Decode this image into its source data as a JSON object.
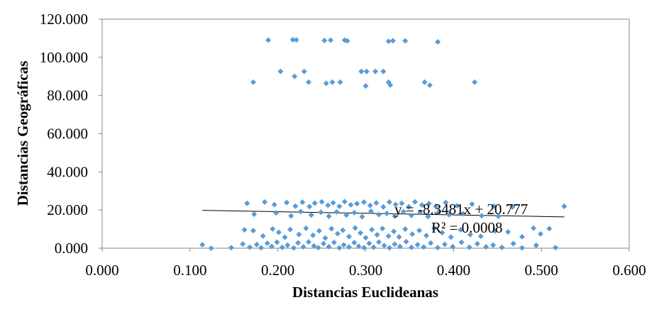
{
  "chart_data": {
    "type": "scatter",
    "title": "",
    "xlabel": "Distancias Euclideanas",
    "ylabel": "Distancias Geográficas",
    "xlim": [
      0,
      0.6
    ],
    "ylim": [
      0,
      120
    ],
    "x_ticks": [
      "0.000",
      "0.100",
      "0.200",
      "0.300",
      "0.400",
      "0.500",
      "0.600"
    ],
    "y_ticks": [
      "0.000",
      "20.000",
      "40.000",
      "60.000",
      "80.000",
      "100.000",
      "120.000"
    ],
    "grid": false,
    "legend": "none",
    "marker_color": "#5B9BD5",
    "series": [
      {
        "points": [
          [
            0.189,
            109.0
          ],
          [
            0.217,
            109.2
          ],
          [
            0.221,
            109.1
          ],
          [
            0.253,
            108.8
          ],
          [
            0.26,
            109.0
          ],
          [
            0.276,
            109.0
          ],
          [
            0.279,
            108.6
          ],
          [
            0.326,
            108.4
          ],
          [
            0.331,
            108.7
          ],
          [
            0.345,
            108.6
          ],
          [
            0.382,
            108.1
          ],
          [
            0.203,
            92.6
          ],
          [
            0.219,
            90.0
          ],
          [
            0.23,
            92.6
          ],
          [
            0.295,
            92.6
          ],
          [
            0.301,
            92.6
          ],
          [
            0.311,
            92.6
          ],
          [
            0.32,
            92.6
          ],
          [
            0.367,
            87.0
          ],
          [
            0.172,
            87.0
          ],
          [
            0.235,
            87.0
          ],
          [
            0.255,
            86.4
          ],
          [
            0.262,
            87.0
          ],
          [
            0.271,
            87.0
          ],
          [
            0.3,
            85.0
          ],
          [
            0.326,
            87.0
          ],
          [
            0.328,
            85.5
          ],
          [
            0.373,
            85.4
          ],
          [
            0.424,
            87.0
          ],
          [
            0.165,
            23.5
          ],
          [
            0.185,
            24.2
          ],
          [
            0.196,
            22.8
          ],
          [
            0.21,
            23.9
          ],
          [
            0.22,
            22.0
          ],
          [
            0.228,
            24.1
          ],
          [
            0.236,
            21.8
          ],
          [
            0.242,
            23.6
          ],
          [
            0.25,
            24.3
          ],
          [
            0.257,
            22.5
          ],
          [
            0.263,
            23.8
          ],
          [
            0.27,
            21.9
          ],
          [
            0.276,
            24.4
          ],
          [
            0.283,
            22.7
          ],
          [
            0.29,
            23.3
          ],
          [
            0.298,
            24.1
          ],
          [
            0.305,
            22.4
          ],
          [
            0.312,
            23.7
          ],
          [
            0.32,
            21.6
          ],
          [
            0.327,
            24.2
          ],
          [
            0.334,
            22.9
          ],
          [
            0.341,
            23.5
          ],
          [
            0.349,
            21.7
          ],
          [
            0.356,
            24.3
          ],
          [
            0.364,
            22.6
          ],
          [
            0.372,
            23.4
          ],
          [
            0.38,
            21.8
          ],
          [
            0.391,
            23.9
          ],
          [
            0.404,
            22.2
          ],
          [
            0.421,
            23.1
          ],
          [
            0.446,
            22.0
          ],
          [
            0.467,
            21.6
          ],
          [
            0.526,
            21.9
          ],
          [
            0.173,
            17.8
          ],
          [
            0.198,
            18.5
          ],
          [
            0.215,
            16.9
          ],
          [
            0.226,
            19.2
          ],
          [
            0.238,
            17.4
          ],
          [
            0.249,
            18.8
          ],
          [
            0.258,
            16.7
          ],
          [
            0.267,
            19.0
          ],
          [
            0.278,
            17.3
          ],
          [
            0.287,
            18.6
          ],
          [
            0.296,
            16.5
          ],
          [
            0.306,
            19.3
          ],
          [
            0.315,
            17.6
          ],
          [
            0.324,
            18.2
          ],
          [
            0.333,
            16.8
          ],
          [
            0.343,
            19.1
          ],
          [
            0.352,
            17.2
          ],
          [
            0.362,
            18.7
          ],
          [
            0.371,
            16.6
          ],
          [
            0.383,
            18.9
          ],
          [
            0.395,
            17.5
          ],
          [
            0.411,
            18.1
          ],
          [
            0.432,
            17.0
          ],
          [
            0.451,
            16.7
          ],
          [
            0.162,
            9.6
          ],
          [
            0.172,
            9.2
          ],
          [
            0.183,
            6.4
          ],
          [
            0.194,
            10.1
          ],
          [
            0.201,
            8.3
          ],
          [
            0.208,
            5.7
          ],
          [
            0.214,
            9.8
          ],
          [
            0.224,
            7.2
          ],
          [
            0.232,
            10.4
          ],
          [
            0.24,
            6.8
          ],
          [
            0.247,
            9.1
          ],
          [
            0.254,
            5.3
          ],
          [
            0.261,
            10.2
          ],
          [
            0.268,
            7.6
          ],
          [
            0.274,
            9.4
          ],
          [
            0.281,
            6.1
          ],
          [
            0.288,
            10.6
          ],
          [
            0.294,
            8.0
          ],
          [
            0.3,
            5.5
          ],
          [
            0.307,
            9.7
          ],
          [
            0.313,
            7.0
          ],
          [
            0.319,
            10.3
          ],
          [
            0.326,
            6.3
          ],
          [
            0.332,
            8.8
          ],
          [
            0.338,
            5.9
          ],
          [
            0.345,
            10.0
          ],
          [
            0.353,
            7.4
          ],
          [
            0.361,
            9.3
          ],
          [
            0.369,
            6.6
          ],
          [
            0.378,
            10.5
          ],
          [
            0.387,
            8.1
          ],
          [
            0.397,
            5.8
          ],
          [
            0.408,
            9.6
          ],
          [
            0.419,
            7.1
          ],
          [
            0.431,
            6.2
          ],
          [
            0.447,
            9.0
          ],
          [
            0.462,
            8.5
          ],
          [
            0.478,
            6.0
          ],
          [
            0.491,
            10.5
          ],
          [
            0.499,
            7.5
          ],
          [
            0.509,
            10.2
          ],
          [
            0.114,
            1.8
          ],
          [
            0.124,
            0.0
          ],
          [
            0.147,
            0.3
          ],
          [
            0.16,
            2.2
          ],
          [
            0.168,
            0.5
          ],
          [
            0.176,
            1.9
          ],
          [
            0.181,
            0.2
          ],
          [
            0.188,
            2.6
          ],
          [
            0.193,
            0.9
          ],
          [
            0.199,
            3.1
          ],
          [
            0.205,
            0.4
          ],
          [
            0.211,
            1.6
          ],
          [
            0.218,
            0.1
          ],
          [
            0.223,
            2.8
          ],
          [
            0.229,
            0.7
          ],
          [
            0.235,
            3.3
          ],
          [
            0.241,
            1.2
          ],
          [
            0.246,
            0.3
          ],
          [
            0.252,
            2.4
          ],
          [
            0.258,
            0.8
          ],
          [
            0.264,
            3.0
          ],
          [
            0.27,
            0.2
          ],
          [
            0.275,
            1.7
          ],
          [
            0.281,
            0.6
          ],
          [
            0.287,
            2.9
          ],
          [
            0.292,
            1.0
          ],
          [
            0.298,
            0.3
          ],
          [
            0.304,
            2.5
          ],
          [
            0.309,
            0.5
          ],
          [
            0.315,
            3.2
          ],
          [
            0.321,
            1.4
          ],
          [
            0.327,
            0.2
          ],
          [
            0.333,
            2.1
          ],
          [
            0.339,
            0.9
          ],
          [
            0.346,
            3.4
          ],
          [
            0.352,
            0.4
          ],
          [
            0.359,
            1.8
          ],
          [
            0.366,
            0.6
          ],
          [
            0.374,
            2.7
          ],
          [
            0.382,
            0.3
          ],
          [
            0.39,
            2.0
          ],
          [
            0.399,
            0.8
          ],
          [
            0.409,
            3.1
          ],
          [
            0.418,
            0.5
          ],
          [
            0.427,
            2.3
          ],
          [
            0.437,
            0.7
          ],
          [
            0.445,
            1.6
          ],
          [
            0.455,
            0.4
          ],
          [
            0.468,
            2.4
          ],
          [
            0.478,
            0.2
          ],
          [
            0.494,
            1.5
          ],
          [
            0.516,
            0.3
          ]
        ]
      }
    ],
    "trendline": {
      "equation": "y = -8.3481x + 20.777",
      "r_squared": "R² = 0.0008",
      "slope": -8.3481,
      "intercept": 20.777,
      "x_range": [
        0.114,
        0.526
      ]
    }
  }
}
